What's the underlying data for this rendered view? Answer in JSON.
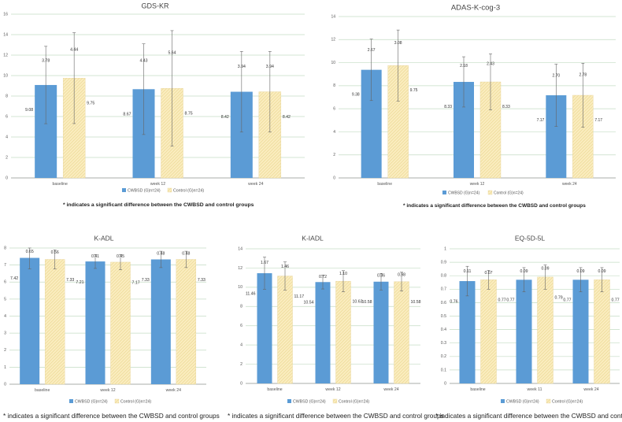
{
  "footnotes": {
    "top_left": "* indicates a significant difference between the CWBSD and control groups",
    "top_right": "* indicates a significant difference between the CWBSD and control groups",
    "bottom_left": "* indicates a significant difference between the CWBSD and control groups",
    "bottom_middle": "* indicates a significant difference between the CWBSD and control groups",
    "bottom_right": "* indicates a significant difference between the CWBSD and control groups"
  },
  "colors": {
    "cwbsd": "#5b9bd5",
    "control": "#fbedc0",
    "control_hatch": "#eedc9a",
    "grid": "#c4dcc4",
    "text": "#555555"
  },
  "chart_data": [
    {
      "id": "gds-kr",
      "type": "bar",
      "title": "GDS-KR",
      "categories": [
        "baseline",
        "week 12",
        "week 24"
      ],
      "ylim": [
        0,
        16
      ],
      "yticks": [
        0,
        2,
        4,
        6,
        8,
        10,
        12,
        14,
        16
      ],
      "ytick_labels": [
        "0",
        "2",
        "4",
        "6",
        "8",
        "10",
        "12",
        "14",
        "16"
      ],
      "series": [
        {
          "name": "CWBSD (G)n=24)",
          "values": [
            9.08,
            8.67,
            8.42
          ],
          "value_labels": [
            "9.08",
            "8.67",
            "8.42"
          ],
          "sd": [
            3.78,
            4.43,
            3.94
          ],
          "sd_labels": [
            "3.78",
            "4.43",
            "3.94"
          ]
        },
        {
          "name": "Control (G)n=24)",
          "values": [
            9.75,
            8.75,
            8.42
          ],
          "value_labels": [
            "9.75",
            "8.75",
            "8.42"
          ],
          "sd": [
            4.44,
            5.64,
            3.94
          ],
          "sd_labels": [
            "4.44",
            "5.64",
            "3.94"
          ]
        }
      ]
    },
    {
      "id": "adas-k-cog-3",
      "type": "bar",
      "title": "ADAS-K-cog-3",
      "categories": [
        "baseline",
        "week 12",
        "week 24"
      ],
      "ylim": [
        0,
        14
      ],
      "yticks": [
        0,
        2,
        4,
        6,
        8,
        10,
        12,
        14
      ],
      "ytick_labels": [
        "0",
        "2",
        "4",
        "6",
        "8",
        "10",
        "12",
        "14"
      ],
      "series": [
        {
          "name": "CWBSD (G)n=24)",
          "values": [
            9.38,
            8.33,
            7.17
          ],
          "value_labels": [
            "9.38",
            "8.33",
            "7.17"
          ],
          "sd": [
            2.67,
            2.18,
            2.7
          ],
          "sd_labels": [
            "2.67",
            "2.18",
            "2.70"
          ]
        },
        {
          "name": "Control (G)n=24)",
          "values": [
            9.75,
            8.33,
            7.17
          ],
          "value_labels": [
            "9.75",
            "8.33",
            "7.17"
          ],
          "sd": [
            3.08,
            2.43,
            2.78
          ],
          "sd_labels": [
            "3.08",
            "2.43",
            "2.78"
          ]
        }
      ]
    },
    {
      "id": "k-adl",
      "type": "bar",
      "title": "K-ADL",
      "categories": [
        "baseline",
        "week 12",
        "week 24"
      ],
      "ylim": [
        0,
        8
      ],
      "yticks": [
        0,
        1,
        2,
        3,
        4,
        5,
        6,
        7,
        8
      ],
      "ytick_labels": [
        "0",
        "1",
        "2",
        "3",
        "4",
        "5",
        "6",
        "7",
        "8"
      ],
      "series": [
        {
          "name": "CWBSD (G)n=24)",
          "values": [
            7.42,
            7.21,
            7.33
          ],
          "value_labels": [
            "7.42",
            "7.21",
            "7.33"
          ],
          "sd": [
            0.65,
            0.41,
            0.48
          ],
          "sd_labels": [
            "0.65",
            "0.41",
            "0.48"
          ]
        },
        {
          "name": "Control (G)n=24)",
          "values": [
            7.33,
            7.17,
            7.33
          ],
          "value_labels": [
            "7.33",
            "7.17",
            "7.33"
          ],
          "sd": [
            0.56,
            0.45,
            0.48
          ],
          "sd_labels": [
            "0.56",
            "0.45",
            "0.48"
          ]
        }
      ]
    },
    {
      "id": "k-iadl",
      "type": "bar",
      "title": "K-IADL",
      "categories": [
        "baseline",
        "week 12",
        "week 24"
      ],
      "ylim": [
        0,
        14
      ],
      "yticks": [
        0,
        2,
        4,
        6,
        8,
        10,
        12,
        14
      ],
      "ytick_labels": [
        "0",
        "2",
        "4",
        "6",
        "8",
        "10",
        "12",
        "14"
      ],
      "series": [
        {
          "name": "CWBSD (G)n=24)",
          "values": [
            11.46,
            10.54,
            10.58
          ],
          "value_labels": [
            "11.46",
            "10.54",
            "10.58"
          ],
          "sd": [
            1.67,
            0.72,
            0.86
          ],
          "sd_labels": [
            "1.67",
            "0.72",
            "0.86"
          ]
        },
        {
          "name": "Control (G)n=24)",
          "values": [
            11.17,
            10.63,
            10.58
          ],
          "value_labels": [
            "11.17",
            "10.63",
            "10.58"
          ],
          "sd": [
            1.46,
            1.1,
            0.98
          ],
          "sd_labels": [
            "1.46",
            "1.10",
            "0.98"
          ]
        }
      ]
    },
    {
      "id": "eq-5d-5l",
      "type": "bar",
      "title": "EQ-5D-5L",
      "categories": [
        "baseline",
        "week 11",
        "week 24"
      ],
      "ylim": [
        0,
        1
      ],
      "yticks": [
        0,
        0.1,
        0.2,
        0.3,
        0.4,
        0.5,
        0.6,
        0.7,
        0.8,
        0.9,
        1
      ],
      "ytick_labels": [
        "0",
        "0.1",
        "0.2",
        "0.3",
        "0.4",
        "0.5",
        "0.6",
        "0.7",
        "0.8",
        "0.9",
        "1"
      ],
      "series": [
        {
          "name": "CWBSD (G)n=24)",
          "values": [
            0.76,
            0.77,
            0.77
          ],
          "value_labels": [
            "0.76",
            "0.77",
            "0.77"
          ],
          "sd": [
            0.11,
            0.09,
            0.09
          ],
          "sd_labels": [
            "0.11",
            "0.09",
            "0.09"
          ]
        },
        {
          "name": "Control (G)n=24)",
          "values": [
            0.77,
            0.79,
            0.77
          ],
          "value_labels": [
            "0.77",
            "0.79",
            "0.77"
          ],
          "sd": [
            0.07,
            0.09,
            0.09
          ],
          "sd_labels": [
            "0.07",
            "0.09",
            "0.09"
          ]
        }
      ]
    }
  ]
}
